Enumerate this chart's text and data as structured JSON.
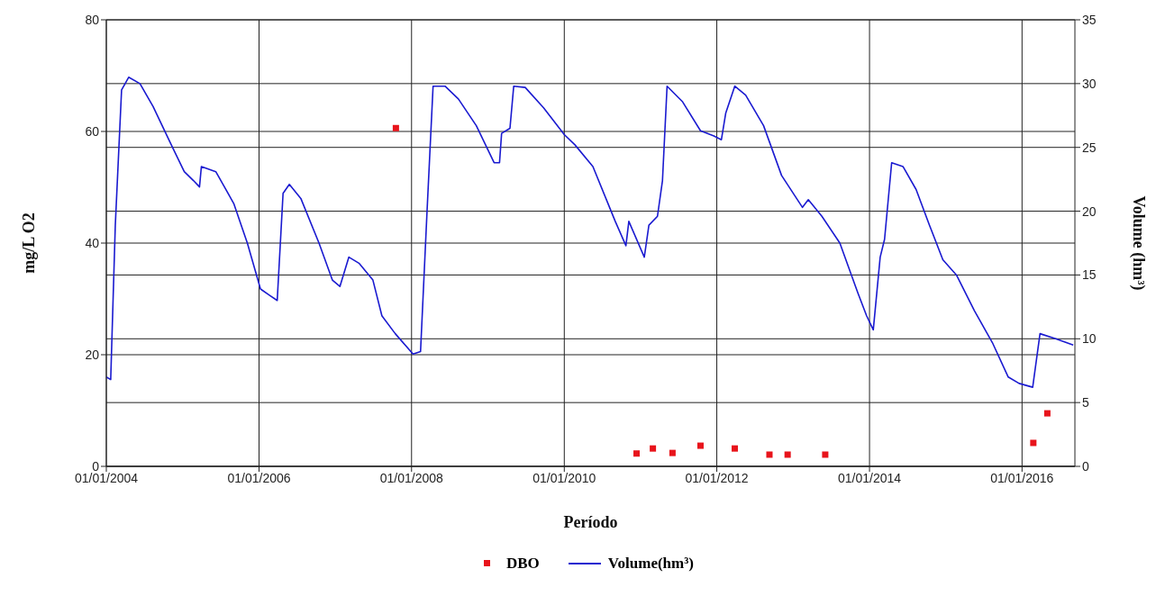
{
  "chart_data": {
    "type": "line",
    "xlabel": "Período",
    "ylabel": "mg/L O2",
    "y2label": "Volume (hm³)",
    "xlim": [
      "2004-01-01",
      "2016-09-10"
    ],
    "xticks": [
      {
        "value": "2004-01-01",
        "label": "01/01/2004"
      },
      {
        "value": "2006-01-01",
        "label": "01/01/2006"
      },
      {
        "value": "2008-01-01",
        "label": "01/01/2008"
      },
      {
        "value": "2010-01-01",
        "label": "01/01/2010"
      },
      {
        "value": "2012-01-01",
        "label": "01/01/2012"
      },
      {
        "value": "2014-01-01",
        "label": "01/01/2014"
      },
      {
        "value": "2016-01-01",
        "label": "01/01/2016"
      }
    ],
    "ylim": [
      0,
      80
    ],
    "yticks": [
      0,
      20,
      40,
      60,
      80
    ],
    "y2lim": [
      0,
      35
    ],
    "y2ticks": [
      0,
      5,
      10,
      15,
      20,
      25,
      30,
      35
    ],
    "grid": true,
    "legend": "bottom",
    "series": [
      {
        "name": "DBO",
        "type": "scatter",
        "marker": "square",
        "color": "#e8141b",
        "x": [
          "2007-10-18",
          "2010-12-13",
          "2011-03-01",
          "2011-06-03",
          "2011-10-15",
          "2012-03-27",
          "2012-09-09",
          "2012-12-05",
          "2013-06-03",
          "2016-02-24",
          "2016-05-01"
        ],
        "values": [
          60.6,
          2.3,
          3.2,
          2.4,
          3.7,
          3.2,
          2.1,
          2.1,
          2.1,
          4.2,
          9.5
        ]
      },
      {
        "name": "Volume(hm³)",
        "axis": "y2",
        "marker": "none",
        "line_style": "solid",
        "color": "#1a1ad0",
        "x": [
          "2004-01-01",
          "2004-01-22",
          "2004-02-13",
          "2004-03-14",
          "2004-04-17",
          "2004-06-10",
          "2004-08-12",
          "2004-11-07",
          "2005-01-08",
          "2005-02-21",
          "2005-03-22",
          "2005-03-31",
          "2005-06-08",
          "2005-09-02",
          "2005-11-06",
          "2006-01-08",
          "2006-02-21",
          "2006-03-29",
          "2006-04-26",
          "2006-05-26",
          "2006-07-20",
          "2006-10-15",
          "2006-12-18",
          "2007-01-23",
          "2007-03-07",
          "2007-04-26",
          "2007-06-30",
          "2007-08-12",
          "2007-10-15",
          "2008-01-08",
          "2008-02-13",
          "2008-03-14",
          "2008-04-13",
          "2008-06-09",
          "2008-08-12",
          "2008-11-06",
          "2009-01-30",
          "2009-02-25",
          "2009-03-07",
          "2009-04-16",
          "2009-05-04",
          "2009-06-28",
          "2009-09-24",
          "2010-01-01",
          "2010-02-21",
          "2010-05-18",
          "2010-09-02",
          "2010-10-23",
          "2010-11-06",
          "2011-01-19",
          "2011-02-10",
          "2011-03-23",
          "2011-04-16",
          "2011-05-08",
          "2011-07-20",
          "2011-10-15",
          "2011-12-18",
          "2012-01-23",
          "2012-02-13",
          "2012-03-27",
          "2012-05-18",
          "2012-08-12",
          "2012-11-06",
          "2013-02-14",
          "2013-03-14",
          "2013-05-18",
          "2013-08-12",
          "2013-11-06",
          "2013-12-18",
          "2014-01-19",
          "2014-02-21",
          "2014-03-14",
          "2014-04-17",
          "2014-06-10",
          "2014-08-12",
          "2014-10-15",
          "2014-12-18",
          "2015-02-21",
          "2015-05-18",
          "2015-08-12",
          "2015-10-27",
          "2015-12-18",
          "2016-02-21",
          "2016-03-27",
          "2016-06-10",
          "2016-09-02"
        ],
        "values": [
          7.0,
          6.8,
          18.9,
          29.5,
          30.5,
          30.0,
          28.2,
          25.2,
          23.1,
          22.4,
          21.9,
          23.5,
          23.1,
          20.6,
          17.5,
          13.9,
          13.4,
          13.0,
          21.4,
          22.1,
          21.0,
          17.5,
          14.6,
          14.1,
          16.4,
          15.9,
          14.6,
          11.8,
          10.4,
          8.8,
          9.0,
          19.6,
          29.8,
          29.8,
          28.8,
          26.7,
          23.8,
          23.8,
          26.1,
          26.5,
          29.8,
          29.7,
          28.1,
          26.0,
          25.2,
          23.5,
          19.2,
          17.3,
          19.2,
          16.4,
          18.9,
          19.6,
          22.4,
          29.8,
          28.6,
          26.3,
          25.9,
          25.6,
          27.7,
          29.8,
          29.1,
          26.7,
          22.8,
          20.3,
          20.9,
          19.6,
          17.5,
          13.6,
          11.8,
          10.7,
          16.4,
          17.8,
          23.8,
          23.5,
          21.7,
          18.9,
          16.2,
          15.0,
          12.2,
          9.7,
          7.0,
          6.5,
          6.2,
          10.4,
          10.0,
          9.5
        ]
      }
    ]
  }
}
